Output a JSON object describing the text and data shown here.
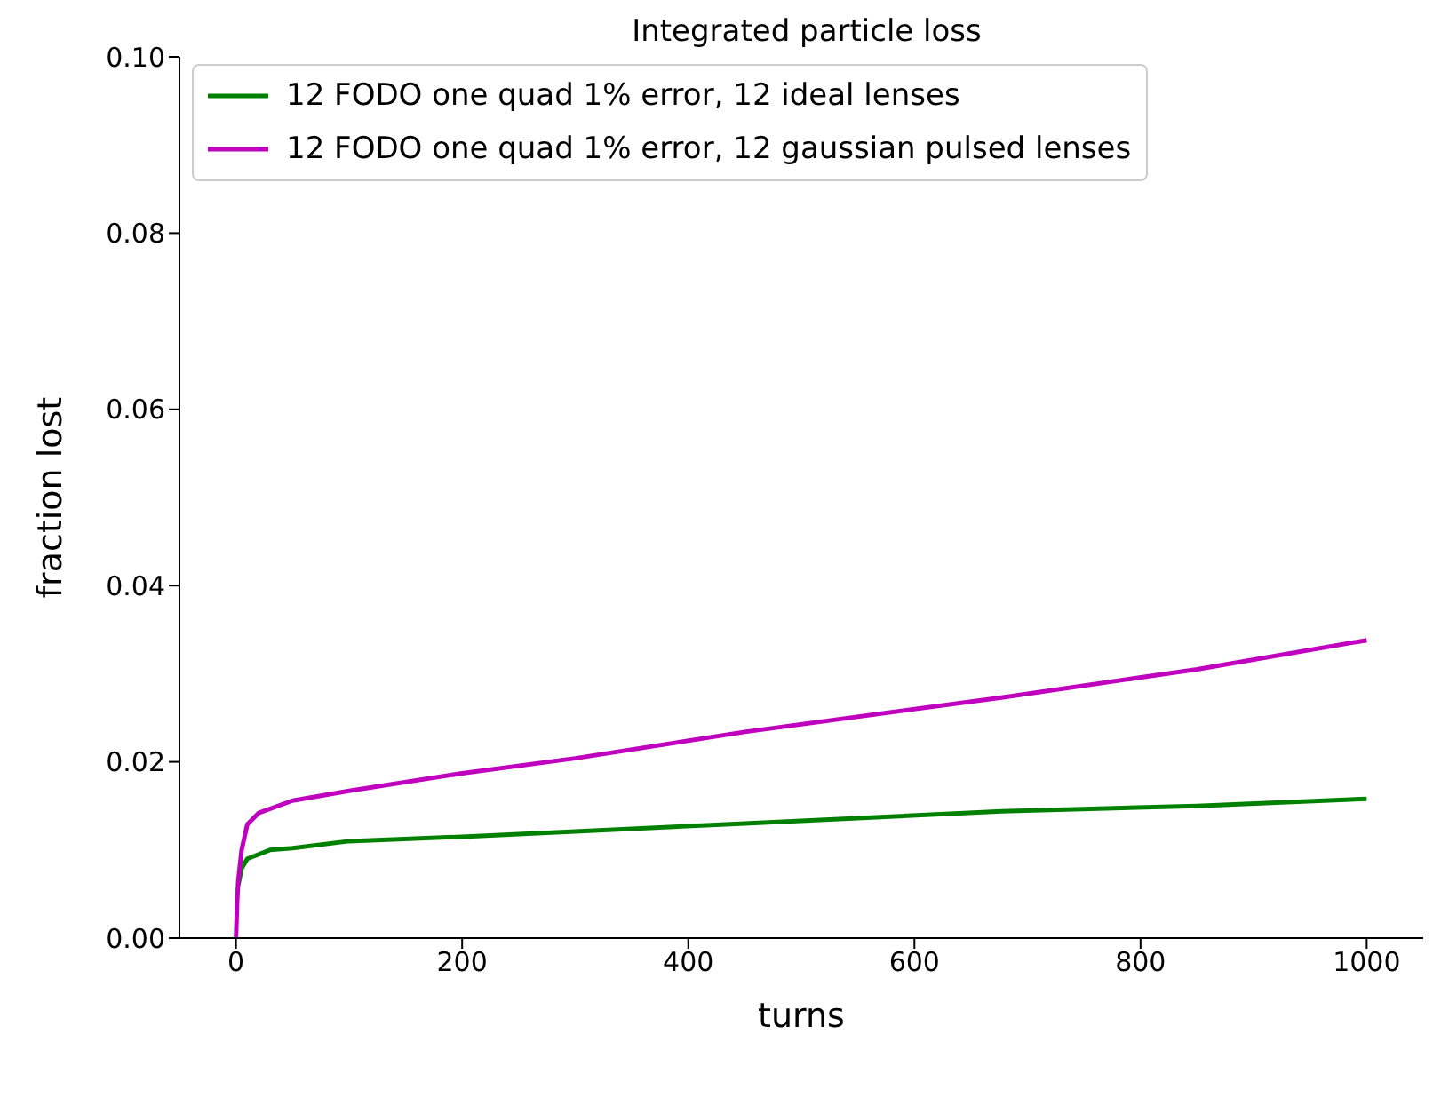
{
  "chart_data": {
    "type": "line",
    "title": "Integrated particle loss",
    "xlabel": "turns",
    "ylabel": "fraction lost",
    "xlim": [
      -50,
      1050
    ],
    "xticks": [
      0,
      200,
      400,
      600,
      800,
      1000
    ],
    "ylim": [
      0,
      0.1
    ],
    "yticks": [
      {
        "value": 0,
        "label": "0.00"
      },
      {
        "value": 0.02,
        "label": "0.02"
      },
      {
        "value": 0.04,
        "label": "0.04"
      },
      {
        "value": 0.06,
        "label": "0.06"
      },
      {
        "value": 0.08,
        "label": "0.08"
      },
      {
        "value": 0.1,
        "label": "0.10"
      }
    ],
    "grid": false,
    "legend": "top left",
    "line_style": "solid",
    "marker": "none",
    "series": [
      {
        "name": "12 FODO one quad 1% error, 12 ideal lenses",
        "color": "#008000",
        "x": [
          2,
          5,
          10,
          30,
          50,
          100,
          200,
          300,
          450,
          677,
          850,
          1000
        ],
        "values": [
          0.006,
          0.0079,
          0.009,
          0.01,
          0.0102,
          0.011,
          0.0115,
          0.0121,
          0.013,
          0.0144,
          0.015,
          0.0158
        ]
      },
      {
        "name": "12 FODO one quad 1% error, 12 gaussian pulsed lenses",
        "color": "#bf00bf",
        "x": [
          0,
          1,
          2,
          5,
          10,
          20,
          50,
          100,
          200,
          300,
          450,
          677,
          850,
          1000
        ],
        "values": [
          0,
          0.004,
          0.0065,
          0.01,
          0.0129,
          0.0142,
          0.0156,
          0.0167,
          0.0187,
          0.0204,
          0.0234,
          0.0273,
          0.0305,
          0.0338
        ]
      }
    ]
  }
}
